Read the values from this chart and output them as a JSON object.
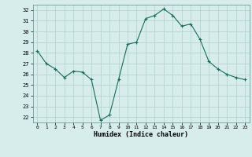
{
  "x": [
    0,
    1,
    2,
    3,
    4,
    5,
    6,
    7,
    8,
    9,
    10,
    11,
    12,
    13,
    14,
    15,
    16,
    17,
    18,
    19,
    20,
    21,
    22,
    23
  ],
  "y": [
    28.2,
    27.0,
    26.5,
    25.7,
    26.3,
    26.2,
    25.5,
    21.7,
    22.2,
    25.5,
    28.8,
    29.0,
    31.2,
    31.5,
    32.1,
    31.5,
    30.5,
    30.7,
    29.3,
    27.2,
    26.5,
    26.0,
    25.7,
    25.5
  ],
  "line_color": "#1a6b5a",
  "marker": "+",
  "bg_color": "#d6edec",
  "grid_color": "#b0d0ce",
  "xlabel": "Humidex (Indice chaleur)",
  "xlim": [
    -0.5,
    23.5
  ],
  "ylim": [
    21.5,
    32.5
  ],
  "yticks": [
    22,
    23,
    24,
    25,
    26,
    27,
    28,
    29,
    30,
    31,
    32
  ],
  "xticks": [
    0,
    1,
    2,
    3,
    4,
    5,
    6,
    7,
    8,
    9,
    10,
    11,
    12,
    13,
    14,
    15,
    16,
    17,
    18,
    19,
    20,
    21,
    22,
    23
  ],
  "line_width": 0.8,
  "marker_size": 3,
  "marker_ew": 0.8
}
